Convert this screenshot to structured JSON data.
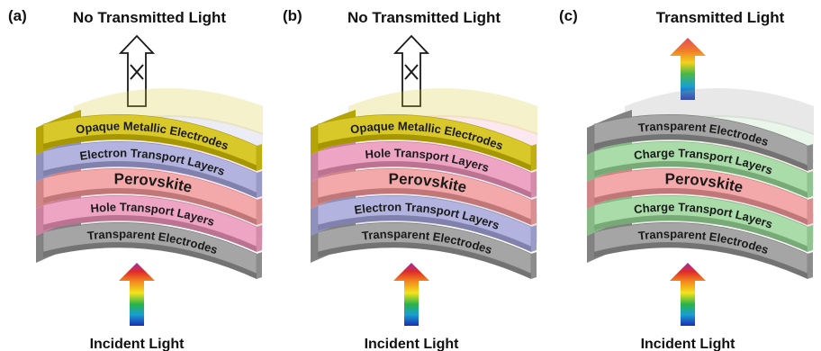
{
  "panels": [
    {
      "letter": "(a)",
      "top_label": "No Transmitted Light",
      "top_arrow": "blocked-outline-arrow",
      "bottom_label": "Incident Light",
      "layers": [
        {
          "label": "Opaque Metallic Electrodes",
          "color": "#d8c82a"
        },
        {
          "label": "Electron Transport Layers",
          "color": "#b3b3df"
        },
        {
          "label": "Perovskite",
          "color": "#f3a9a9"
        },
        {
          "label": "Hole Transport Layers",
          "color": "#eea5c4"
        },
        {
          "label": "Transparent Electrodes",
          "color": "#a5a5a5"
        }
      ]
    },
    {
      "letter": "(b)",
      "top_label": "No Transmitted Light",
      "top_arrow": "blocked-outline-arrow",
      "bottom_label": "Incident Light",
      "layers": [
        {
          "label": "Opaque Metallic Electrodes",
          "color": "#d8c82a"
        },
        {
          "label": "Hole Transport Layers",
          "color": "#eea5c4"
        },
        {
          "label": "Perovskite",
          "color": "#f3a9a9"
        },
        {
          "label": "Electron Transport Layers",
          "color": "#b3b3df"
        },
        {
          "label": "Transparent Electrodes",
          "color": "#a5a5a5"
        }
      ]
    },
    {
      "letter": "(c)",
      "top_label": "Transmitted Light",
      "top_arrow": "rainbow-arrow",
      "bottom_label": "Incident Light",
      "layers": [
        {
          "label": "Transparent Electrodes",
          "color": "#a5a5a5"
        },
        {
          "label": "Charge Transport Layers",
          "color": "#a9dca9"
        },
        {
          "label": "Perovskite",
          "color": "#f3a9a9"
        },
        {
          "label": "Charge Transport Layers",
          "color": "#a9dca9"
        },
        {
          "label": "Transparent Electrodes",
          "color": "#a5a5a5"
        }
      ]
    }
  ]
}
